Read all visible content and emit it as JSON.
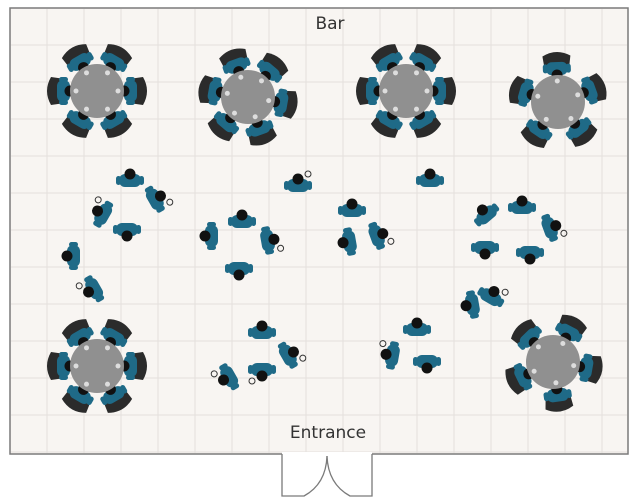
{
  "labels": {
    "top": "Bar",
    "bottom": "Entrance"
  },
  "colors": {
    "floor": "#f8f5f2",
    "grid": "#e4e0dc",
    "wall": "#7a7a7a",
    "table": "#909090",
    "chair": "#2b2b2b",
    "person": "#1f6a87",
    "head": "#111111",
    "drink": "#dddddd"
  },
  "icons": {
    "table": "round-table-icon",
    "chair": "chair-icon",
    "person": "person-top-view-icon",
    "door": "double-door-icon"
  },
  "seated_tables": 6,
  "standing_groups": 6
}
